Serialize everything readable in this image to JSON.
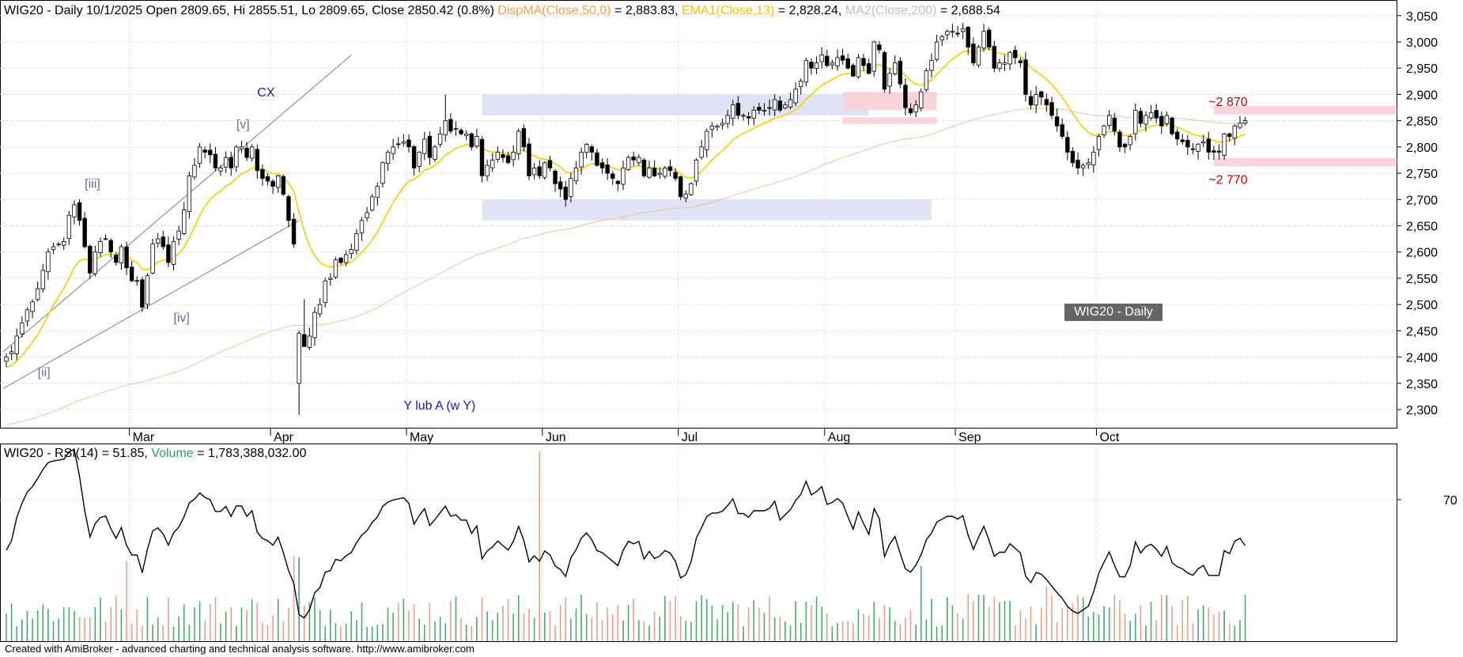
{
  "header": {
    "info": "WIG20 - Daily 10/1/2025 Open 2809.65, Hi 2855.51, Lo 2809.65, Close 2850.42 (0.8%)",
    "ma50_label": "DispMA(Close,50,0)",
    "ma50_value": " = 2,883.83, ",
    "ema13_label": "EMA1(Close,13)",
    "ema13_value": " = 2,828.24, ",
    "ma200_label": "MA2(Close,200)",
    "ma200_value": " = 2,688.54"
  },
  "lower_header": {
    "rsi": "WIG20 - RSI(14) = 51.85, ",
    "volume_label": "Volume",
    "volume_value": " = 1,783,388,032.00"
  },
  "watermark": "WIG20 - Daily",
  "footer": "Created with AmiBroker - advanced charting and technical analysis software. http://www.amibroker.com",
  "colors": {
    "ema13": "#f2d21b",
    "ma200": "#f0c39a",
    "ma50_label": "#f0a050",
    "ma200_label": "#c0c0c0",
    "volume_up": "#4caa6e",
    "volume_down": "#e8a08a",
    "blue_zone": "#dde0f5",
    "pink_zone": "#fbd0d8",
    "wave_label": "#6a6aa8",
    "wave_label_dark": "#1a1aa0",
    "level_label": "#cc0000"
  },
  "chart_data": [
    {
      "type": "candlestick",
      "title": "WIG20 - Daily",
      "x_tick_labels": [
        "Mar",
        "Apr",
        "May",
        "Jun",
        "Jul",
        "Aug",
        "Sep",
        "Oct"
      ],
      "ylim": [
        2260,
        3060
      ],
      "y_ticks": [
        "3,050",
        "3,000",
        "2,950",
        "2,900",
        "2,850",
        "2,800",
        "2,750",
        "2,700",
        "2,650",
        "2,600",
        "2,550",
        "2,500",
        "2,450",
        "2,400",
        "2,350",
        "2,300"
      ],
      "y_tick_values": [
        3050,
        3000,
        2950,
        2900,
        2850,
        2800,
        2750,
        2700,
        2650,
        2600,
        2550,
        2500,
        2450,
        2400,
        2350,
        2300
      ],
      "closes": [
        2400,
        2410,
        2440,
        2465,
        2490,
        2505,
        2530,
        2565,
        2600,
        2610,
        2615,
        2620,
        2670,
        2690,
        2660,
        2610,
        2560,
        2600,
        2620,
        2625,
        2600,
        2580,
        2610,
        2570,
        2545,
        2545,
        2495,
        2555,
        2615,
        2625,
        2610,
        2580,
        2620,
        2640,
        2680,
        2745,
        2765,
        2800,
        2790,
        2785,
        2760,
        2760,
        2780,
        2760,
        2800,
        2800,
        2780,
        2800,
        2755,
        2740,
        2735,
        2725,
        2745,
        2710,
        2660,
        2615,
        2445,
        2420,
        2440,
        2485,
        2500,
        2545,
        2550,
        2585,
        2580,
        2595,
        2605,
        2635,
        2660,
        2675,
        2705,
        2725,
        2770,
        2790,
        2800,
        2805,
        2810,
        2800,
        2760,
        2790,
        2815,
        2780,
        2800,
        2825,
        2850,
        2830,
        2835,
        2825,
        2825,
        2800,
        2820,
        2745,
        2765,
        2775,
        2790,
        2780,
        2770,
        2790,
        2830,
        2800,
        2745,
        2760,
        2745,
        2770,
        2760,
        2730,
        2720,
        2700,
        2740,
        2760,
        2790,
        2805,
        2790,
        2765,
        2760,
        2750,
        2740,
        2730,
        2760,
        2780,
        2775,
        2780,
        2745,
        2760,
        2745,
        2750,
        2760,
        2755,
        2740,
        2705,
        2710,
        2730,
        2775,
        2800,
        2830,
        2840,
        2840,
        2845,
        2860,
        2880,
        2860,
        2860,
        2855,
        2870,
        2870,
        2870,
        2875,
        2890,
        2870,
        2880,
        2890,
        2910,
        2925,
        2965,
        2950,
        2960,
        2975,
        2955,
        2960,
        2970,
        2965,
        2950,
        2935,
        2970,
        2955,
        2940,
        3000,
        2985,
        2910,
        2940,
        2960,
        2920,
        2875,
        2865,
        2880,
        2905,
        2945,
        2965,
        3000,
        3010,
        3020,
        3020,
        3015,
        3025,
        2990,
        2960,
        2990,
        3020,
        2990,
        2950,
        2960,
        2960,
        2980,
        2970,
        2960,
        2900,
        2880,
        2900,
        2895,
        2880,
        2860,
        2840,
        2820,
        2790,
        2770,
        2760,
        2765,
        2770,
        2790,
        2820,
        2840,
        2860,
        2830,
        2800,
        2800,
        2820,
        2870,
        2845,
        2860,
        2865,
        2855,
        2840,
        2860,
        2825,
        2815,
        2810,
        2800,
        2795,
        2805,
        2810,
        2790,
        2790,
        2790,
        2825,
        2820,
        2840,
        2845,
        2850
      ],
      "series": [
        {
          "name": "WIG20",
          "type": "candlestick"
        },
        {
          "name": "DispMA(Close,50,0)",
          "value_shown": 2883.83
        },
        {
          "name": "EMA1(Close,13)",
          "value_shown": 2828.24
        },
        {
          "name": "MA2(Close,200)",
          "value_shown": 2688.54
        }
      ],
      "annotations": [
        {
          "text": "CX",
          "x_bar": 48,
          "y": 2896
        },
        {
          "text": "[v]",
          "x_bar": 44,
          "y": 2835
        },
        {
          "text": "[iii]",
          "x_bar": 15,
          "y": 2722
        },
        {
          "text": "[iv]",
          "x_bar": 32,
          "y": 2467
        },
        {
          "text": "[ii]",
          "x_bar": 6,
          "y": 2363
        },
        {
          "text": "Y lub A (w Y)",
          "x_bar": 76,
          "y": 2300
        },
        {
          "text": "~2 870",
          "x_bar": 230,
          "y": 2878
        },
        {
          "text": "~2 770",
          "x_bar": 230,
          "y": 2730
        }
      ],
      "zones": [
        {
          "color": "blue",
          "x0_bar": 91,
          "x1_bar": 165,
          "y0": 2860,
          "y1": 2900
        },
        {
          "color": "blue",
          "x0_bar": 91,
          "x1_bar": 177,
          "y0": 2660,
          "y1": 2700
        },
        {
          "color": "pink",
          "x0_bar": 160,
          "x1_bar": 178,
          "y0": 2870,
          "y1": 2905
        },
        {
          "color": "pink",
          "x0_bar": 160,
          "x1_bar": 178,
          "y0": 2843,
          "y1": 2856
        },
        {
          "color": "pink",
          "x0_bar": 231,
          "x1_bar": 266,
          "y0": 2862,
          "y1": 2878
        },
        {
          "color": "pink",
          "x0_bar": 231,
          "x1_bar": 266,
          "y0": 2763,
          "y1": 2779
        }
      ]
    },
    {
      "type": "line",
      "title": "WIG20 - RSI(14)",
      "y_ticks": [
        "70"
      ],
      "y_tick_values": [
        70
      ],
      "ylim": [
        20,
        100
      ],
      "series": [
        {
          "name": "RSI(14)",
          "last": 51.85
        },
        {
          "name": "Volume",
          "type": "bar",
          "last": 1783388032
        }
      ]
    }
  ]
}
